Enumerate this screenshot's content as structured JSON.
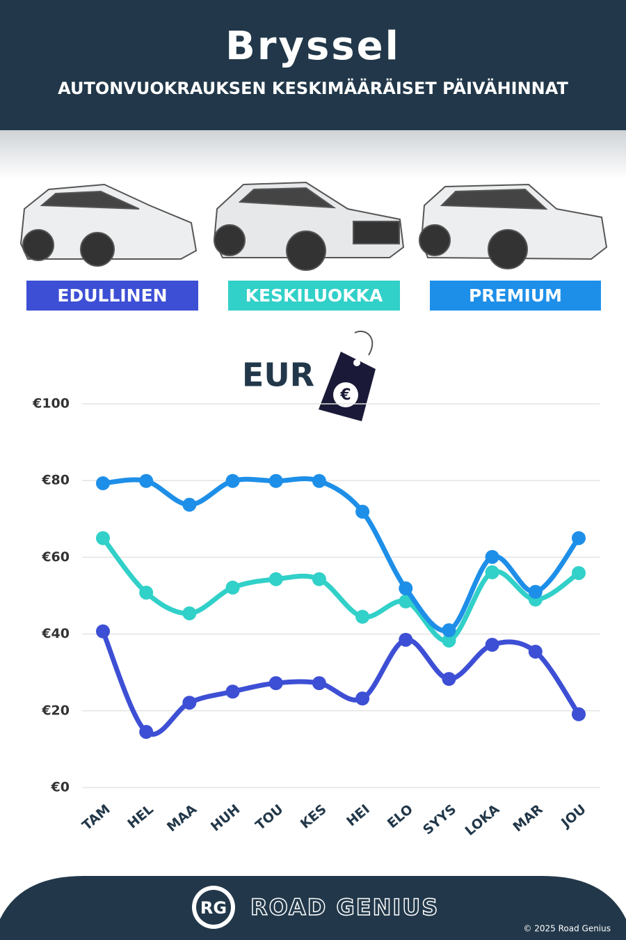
{
  "chart_data": {
    "type": "line",
    "title": "Bryssel",
    "subtitle": "AUTONVUOKRAUKSEN KESKIMÄÄRÄISET PÄIVÄHINNAT",
    "unit_label": "EUR",
    "unit_symbol": "€",
    "categories": [
      "TAM",
      "HEL",
      "MAA",
      "HUH",
      "TOU",
      "KES",
      "HEI",
      "ELO",
      "SYYS",
      "LOKA",
      "MAR",
      "JOU"
    ],
    "series": [
      {
        "name": "EDULLINEN",
        "color": "#3d4fd4",
        "values": [
          40.7,
          14.5,
          22.1,
          25.0,
          27.2,
          27.2,
          23.2,
          38.5,
          28.3,
          37.2,
          35.4,
          19.1
        ]
      },
      {
        "name": "KESKILUOKKA",
        "color": "#31d0c8",
        "values": [
          65.0,
          50.8,
          45.4,
          52.1,
          54.3,
          54.3,
          44.5,
          48.5,
          38.3,
          56.1,
          49.0,
          55.9
        ]
      },
      {
        "name": "PREMIUM",
        "color": "#1e8fe8",
        "values": [
          79.3,
          79.9,
          73.7,
          79.9,
          79.9,
          79.9,
          71.9,
          51.9,
          41.0,
          60.1,
          51.0,
          65.0
        ]
      }
    ],
    "ylim": [
      0,
      100
    ],
    "yticks": [
      {
        "value": 0,
        "label": "€0"
      },
      {
        "value": 20,
        "label": "€20"
      },
      {
        "value": 40,
        "label": "€40"
      },
      {
        "value": 60,
        "label": "€60"
      },
      {
        "value": 80,
        "label": "€80"
      },
      {
        "value": 100,
        "label": "€100"
      }
    ],
    "grid": true
  },
  "footer": {
    "logo": "RG",
    "brand": "ROAD GENIUS",
    "copyright": "© 2025 Road Genius"
  }
}
